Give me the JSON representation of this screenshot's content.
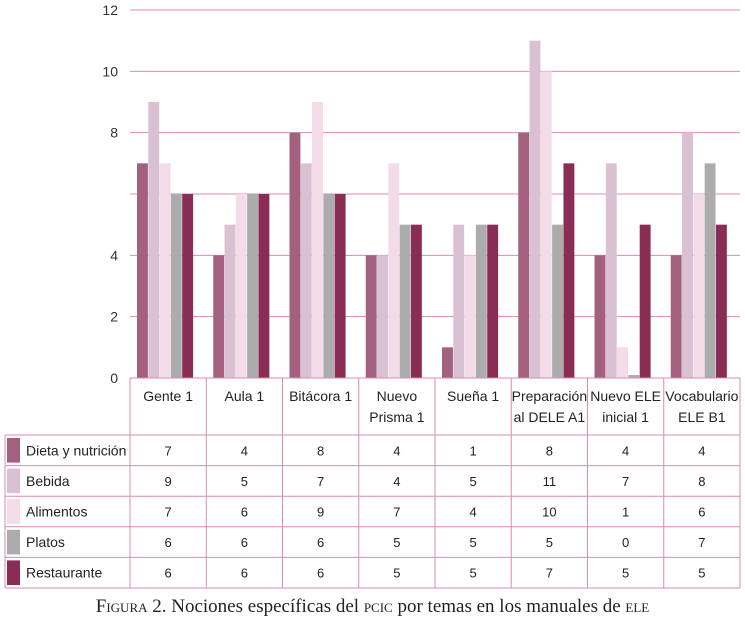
{
  "chart_data": {
    "type": "bar",
    "categories": [
      [
        "Gente 1"
      ],
      [
        "Aula 1"
      ],
      [
        "Bitácora 1"
      ],
      [
        "Nuevo",
        "Prisma 1"
      ],
      [
        "Sueña 1"
      ],
      [
        "Preparación",
        "al DELE A1"
      ],
      [
        "Nuevo ELE",
        "inicial 1"
      ],
      [
        "Vocabulario",
        "ELE B1"
      ]
    ],
    "series": [
      {
        "name": "Dieta y nutrición",
        "color": "#a3607f",
        "values": [
          7,
          4,
          8,
          4,
          1,
          8,
          4,
          4
        ]
      },
      {
        "name": "Bebida",
        "color": "#d9c0d3",
        "values": [
          9,
          5,
          7,
          4,
          5,
          11,
          7,
          8
        ]
      },
      {
        "name": "Alimentos",
        "color": "#f3dbe8",
        "values": [
          7,
          6,
          9,
          7,
          4,
          10,
          1,
          6
        ]
      },
      {
        "name": "Platos",
        "color": "#acacac",
        "values": [
          6,
          6,
          6,
          5,
          5,
          5,
          0,
          7
        ]
      },
      {
        "name": "Restaurante",
        "color": "#8a2d55",
        "values": [
          6,
          6,
          6,
          5,
          5,
          7,
          5,
          5
        ]
      }
    ],
    "yticks": [
      "12",
      "10",
      "8",
      "4",
      "2",
      "0"
    ],
    "ylim": [
      0,
      12
    ],
    "grid": true,
    "legend": "data table below chart"
  },
  "caption": {
    "prefix": "Figura 2.",
    "text_1": " Nociones específicas del ",
    "sc_1": "pcic",
    "text_2": " por temas en los manuales de ",
    "sc_2": "ele"
  }
}
